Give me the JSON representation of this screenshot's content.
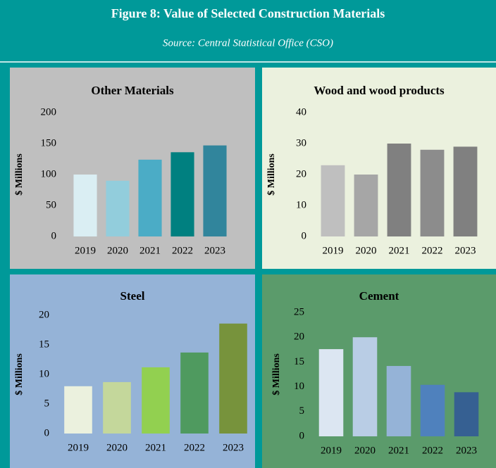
{
  "title": "Figure 8: Value of Selected Construction Materials",
  "source": "Source: Central Statistical Office (CSO)",
  "chart_data": [
    {
      "type": "bar",
      "title": "Other Materials",
      "ylabel": "$ Millions",
      "background": "#bfbfbf",
      "categories": [
        "2019",
        "2020",
        "2021",
        "2022",
        "2023"
      ],
      "values": [
        100,
        90,
        124,
        136,
        147
      ],
      "colors": [
        "#daeef3",
        "#92cddc",
        "#4bacc6",
        "#008080",
        "#31859c"
      ],
      "ylim": [
        0,
        200
      ],
      "yticks": [
        0,
        50,
        100,
        150,
        200
      ]
    },
    {
      "type": "bar",
      "title": "Wood and wood products",
      "ylabel": "$ Millions",
      "background": "#ebf1de",
      "categories": [
        "2019",
        "2020",
        "2021",
        "2022",
        "2023"
      ],
      "values": [
        23,
        20,
        30,
        28,
        29
      ],
      "colors": [
        "#bfbfbf",
        "#a6a6a6",
        "#808080",
        "#8c8c8c",
        "#808080"
      ],
      "ylim": [
        0,
        40
      ],
      "yticks": [
        0,
        10,
        20,
        30,
        40
      ]
    },
    {
      "type": "bar",
      "title": "Steel",
      "ylabel": "$ Millions",
      "background": "#95b3d7",
      "categories": [
        "2019",
        "2020",
        "2021",
        "2022",
        "2023"
      ],
      "values": [
        8.0,
        8.7,
        11.2,
        13.7,
        18.6
      ],
      "colors": [
        "#ebf1de",
        "#c4d79b",
        "#92d050",
        "#4f9a5f",
        "#77933c"
      ],
      "ylim": [
        0,
        20
      ],
      "yticks": [
        0,
        5,
        10,
        15,
        20
      ]
    },
    {
      "type": "bar",
      "title": "Cement",
      "ylabel": "$ Millions",
      "background": "#5b9b6b",
      "categories": [
        "2019",
        "2020",
        "2021",
        "2022",
        "2023"
      ],
      "values": [
        17.6,
        20.0,
        14.2,
        10.4,
        8.9
      ],
      "colors": [
        "#dce6f2",
        "#b9cde5",
        "#95b3d7",
        "#4f81bd",
        "#366092"
      ],
      "ylim": [
        0,
        25
      ],
      "yticks": [
        0,
        5,
        10,
        15,
        20,
        25
      ]
    }
  ]
}
